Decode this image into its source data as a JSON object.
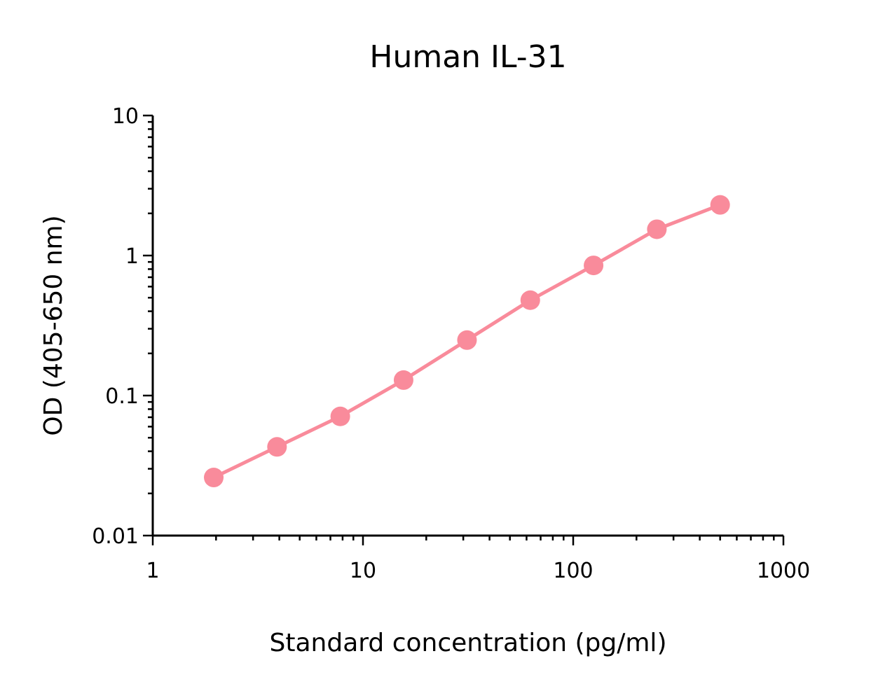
{
  "chart_data": {
    "type": "line",
    "title": "Human IL-31",
    "xlabel": "Standard concentration (pg/ml)",
    "ylabel": "OD (405-650 nm)",
    "xscale": "log",
    "yscale": "log",
    "xlim": [
      1,
      1000
    ],
    "ylim": [
      0.01,
      10
    ],
    "grid": false,
    "xticks": [
      1,
      10,
      100,
      1000
    ],
    "xtick_labels": [
      "1",
      "10",
      "100",
      "1000"
    ],
    "yticks": [
      0.01,
      0.1,
      1,
      10
    ],
    "ytick_labels": [
      "0.01",
      "0.1",
      "1",
      "10"
    ],
    "series": [
      {
        "color": "#f98b9b",
        "marker": "circle",
        "x": [
          1.95,
          3.9,
          7.8,
          15.6,
          31.25,
          62.5,
          125,
          250,
          500
        ],
        "y": [
          0.026,
          0.043,
          0.071,
          0.129,
          0.249,
          0.48,
          0.85,
          1.54,
          2.3
        ]
      }
    ]
  }
}
